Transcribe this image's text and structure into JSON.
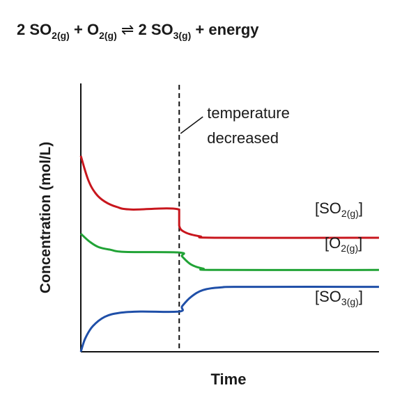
{
  "equation": {
    "coef_left": "2",
    "reactant1": "SO",
    "reactant1_sub": "2(g)",
    "plus1": "+",
    "reactant2": "O",
    "reactant2_sub": "2(g)",
    "arrow": "⇌",
    "coef_right": "2",
    "product": "SO",
    "product_sub": "3(g)",
    "plus2": "+",
    "energy": "energy"
  },
  "chart_data": {
    "type": "line",
    "xlabel": "Time",
    "ylabel": "Concentration (mol/L)",
    "xlim": [
      0,
      10
    ],
    "ylim": [
      0,
      10
    ],
    "ticks": false,
    "grid": false,
    "event": {
      "x": 3.3,
      "label_line1": "temperature",
      "label_line2": "decreased"
    },
    "series": [
      {
        "key": "so2",
        "name_main": "[SO",
        "name_sub": "2(g)",
        "name_close": "]",
        "color": "#c8161d",
        "points": [
          [
            0,
            7.3
          ],
          [
            0.25,
            6.4
          ],
          [
            0.5,
            5.9
          ],
          [
            0.8,
            5.6
          ],
          [
            1.2,
            5.4
          ],
          [
            1.7,
            5.3
          ],
          [
            3.3,
            5.3
          ],
          [
            3.3,
            4.7
          ],
          [
            3.5,
            4.45
          ],
          [
            4.0,
            4.3
          ],
          [
            4.6,
            4.25
          ],
          [
            10,
            4.25
          ]
        ]
      },
      {
        "key": "o2",
        "name_main": "[O",
        "name_sub": "2(g)",
        "name_close": "]",
        "color": "#21a336",
        "points": [
          [
            0,
            4.4
          ],
          [
            0.3,
            4.1
          ],
          [
            0.6,
            3.9
          ],
          [
            1.0,
            3.8
          ],
          [
            1.5,
            3.72
          ],
          [
            3.3,
            3.7
          ],
          [
            3.4,
            3.55
          ],
          [
            3.7,
            3.25
          ],
          [
            4.1,
            3.1
          ],
          [
            4.6,
            3.05
          ],
          [
            10,
            3.05
          ]
        ]
      },
      {
        "key": "so3",
        "name_main": "[SO",
        "name_sub": "3(g)",
        "name_close": "]",
        "color": "#1f4fa8",
        "points": [
          [
            0,
            0
          ],
          [
            0.15,
            0.5
          ],
          [
            0.4,
            0.95
          ],
          [
            0.8,
            1.3
          ],
          [
            1.3,
            1.45
          ],
          [
            2.0,
            1.5
          ],
          [
            3.3,
            1.5
          ],
          [
            3.4,
            1.7
          ],
          [
            3.7,
            2.05
          ],
          [
            4.1,
            2.3
          ],
          [
            4.7,
            2.4
          ],
          [
            5.5,
            2.42
          ],
          [
            10,
            2.42
          ]
        ]
      }
    ]
  }
}
